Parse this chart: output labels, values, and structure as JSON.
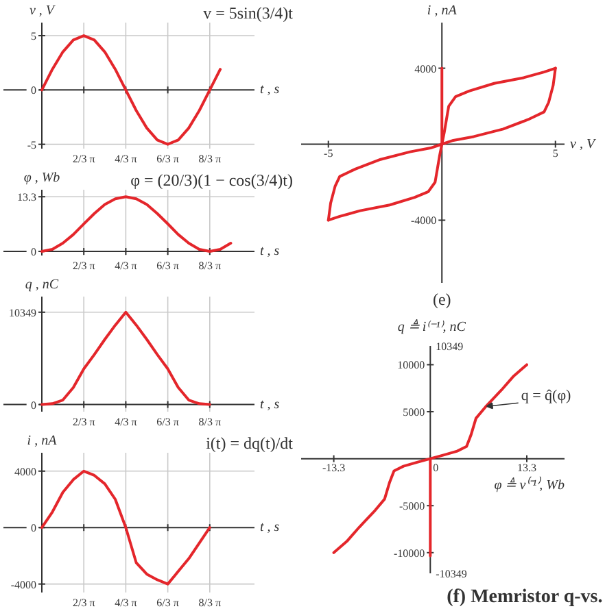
{
  "chart_data": [
    {
      "type": "line",
      "xlabel": "t , s",
      "ylabel": "v , V",
      "categories": [
        null,
        null,
        null,
        null,
        "2/3 π",
        null,
        null,
        null,
        "4/3 π",
        null,
        null,
        null,
        "6/3 π",
        null,
        null,
        null,
        "8/3 π",
        null
      ],
      "series": [
        {
          "color": "#e4262b",
          "values": [
            0,
            1.9,
            3.5,
            4.6,
            5,
            4.6,
            3.5,
            1.9,
            0,
            -1.9,
            -3.5,
            -4.6,
            -5,
            -4.6,
            -3.5,
            -1.9,
            0,
            1.9
          ]
        }
      ],
      "ylim": [
        -5.4,
        6.2
      ],
      "yticks": [
        5,
        0,
        -5
      ],
      "grid": true,
      "annotations": [
        "v = 5sin(3/4)t"
      ]
    },
    {
      "type": "line",
      "xlabel": "t , s",
      "ylabel": "φ , Wb",
      "categories": [
        null,
        null,
        null,
        null,
        "2/3 π",
        null,
        null,
        null,
        "4/3 π",
        null,
        null,
        null,
        "6/3 π",
        null,
        null,
        null,
        "8/3 π",
        null,
        null
      ],
      "series": [
        {
          "color": "#e4262b",
          "values": [
            0,
            0.5,
            2.0,
            4.1,
            6.7,
            9.2,
            11.4,
            12.8,
            13.3,
            12.8,
            11.4,
            9.2,
            6.7,
            4.1,
            2.0,
            0.5,
            0,
            0.5,
            2.0
          ]
        }
      ],
      "ylim": [
        -1,
        15
      ],
      "yticks": [
        0,
        13.3
      ],
      "grid": true,
      "annotations": [
        "φ = (20/3)(1 − cos(3/4)t)"
      ]
    },
    {
      "type": "line",
      "xlabel": "t , s",
      "ylabel": "q , nC",
      "categories": [
        null,
        null,
        null,
        null,
        "2/3 π",
        null,
        null,
        null,
        "4/3 π",
        null,
        null,
        null,
        "6/3 π",
        null,
        null,
        null,
        "8/3 π"
      ],
      "series": [
        {
          "color": "#e4262b",
          "values": [
            0,
            100,
            500,
            1900,
            4000,
            5600,
            7300,
            8900,
            10349,
            8900,
            7300,
            5600,
            4000,
            1900,
            500,
            100,
            0
          ]
        }
      ],
      "ylim": [
        -800,
        12100
      ],
      "yticks": [
        0,
        10349
      ],
      "grid": true
    },
    {
      "type": "line",
      "xlabel": "t , s",
      "ylabel": "i , nA",
      "categories": [
        null,
        null,
        null,
        null,
        "2/3 π",
        null,
        null,
        null,
        "4/3 π",
        null,
        null,
        null,
        "6/3 π",
        null,
        null,
        null,
        "8/3 π"
      ],
      "series": [
        {
          "color": "#e4262b",
          "values": [
            0,
            1100,
            2500,
            3400,
            4000,
            3700,
            3100,
            2000,
            0,
            -2500,
            -3300,
            -3700,
            -4000,
            -3100,
            -2200,
            -1100,
            0
          ]
        }
      ],
      "ylim": [
        -4600,
        5300
      ],
      "yticks": [
        4000,
        0,
        -4000
      ],
      "grid": true,
      "annotations": [
        "i(t) = dq(t)/dt"
      ]
    },
    {
      "type": "line",
      "xlabel": "v , V",
      "ylabel": "i , nA",
      "series": [
        {
          "color": "#e4262b",
          "x": [
            -5,
            -4.9,
            -4.7,
            -4.5,
            -3.8,
            -2.7,
            -1.4,
            -0.5,
            0,
            0.1,
            0.2,
            0.3,
            0.6,
            1.2,
            2.3,
            3.6,
            4.5,
            5
          ],
          "values": [
            -4000,
            -3100,
            -2200,
            -1700,
            -1300,
            -800,
            -400,
            -200,
            0,
            600,
            1300,
            2000,
            2500,
            2800,
            3200,
            3500,
            3800,
            4000
          ]
        },
        {
          "color": "#e4262b",
          "x": [
            5,
            4.9,
            4.7,
            4.5,
            3.8,
            2.7,
            1.4,
            0.5,
            0,
            -0.1,
            -0.2,
            -0.3,
            -0.6,
            -1.2,
            -2.3,
            -3.6,
            -4.5,
            -5
          ],
          "values": [
            4000,
            3100,
            2200,
            1700,
            1300,
            800,
            400,
            200,
            0,
            -600,
            -1300,
            -2000,
            -2500,
            -2800,
            -3200,
            -3500,
            -3800,
            -4000
          ]
        },
        {
          "color": "#e4262b",
          "x": [
            0,
            0
          ],
          "values": [
            0,
            4000
          ]
        }
      ],
      "xlim": [
        -6.2,
        5.4
      ],
      "ylim": [
        -7300,
        6400
      ],
      "xticks": [
        -5,
        5
      ],
      "yticks": [
        4000,
        -4000
      ],
      "annotations": [
        "(e)"
      ]
    },
    {
      "type": "line",
      "xlabel": "φ ≜ v⁽⁻¹⁾, Wb",
      "ylabel": "q ≜ i⁽⁻¹⁾, nC",
      "series": [
        {
          "color": "#e4262b",
          "x": [
            -13.3,
            -11.5,
            -9.8,
            -7.6,
            -6.3,
            -5.6,
            -5.0,
            -3.7,
            -1.9,
            0,
            1.9,
            3.7,
            5.0,
            5.6,
            6.3,
            7.6,
            9.8,
            11.5,
            13.3
          ],
          "values": [
            -10000,
            -8800,
            -7300,
            -5500,
            -4300,
            -2500,
            -1300,
            -800,
            -400,
            0,
            400,
            800,
            1300,
            2500,
            4300,
            5500,
            7300,
            8800,
            10000
          ]
        },
        {
          "color": "#e4262b",
          "x": [
            0,
            0
          ],
          "values": [
            0,
            -10349
          ]
        }
      ],
      "xlim": [
        -17.8,
        18.5
      ],
      "ylim": [
        -12200,
        12000
      ],
      "xticks": [
        -13.3,
        0,
        13.3
      ],
      "yticks": [
        10000,
        5000,
        -5000,
        -10000
      ],
      "annotations": [
        {
          "text": "q = q̂(φ)",
          "x": 7.6,
          "y": 5500
        },
        "10349",
        "-10349",
        "(f) Memristor q-vs."
      ]
    }
  ]
}
